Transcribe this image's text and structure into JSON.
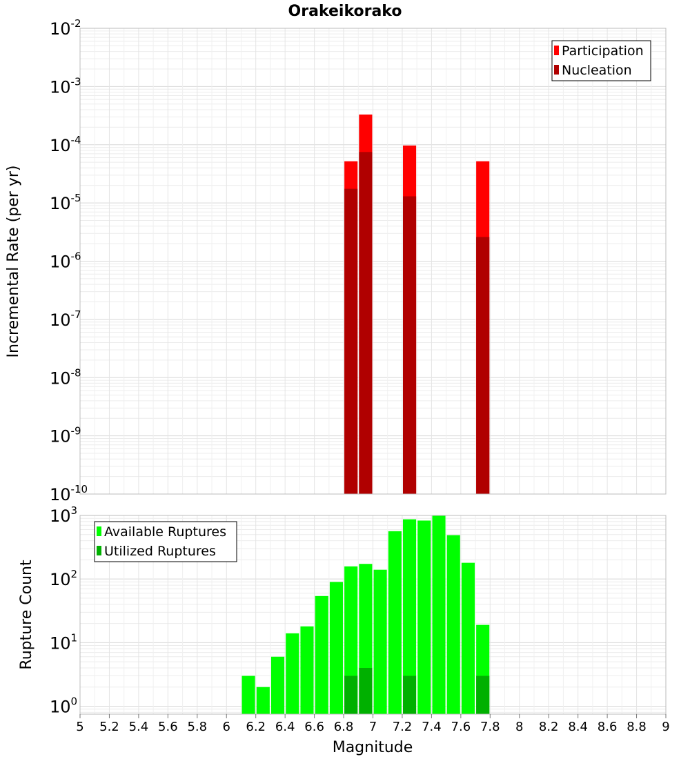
{
  "title": "Orakeikorako",
  "xlabel": "Magnitude",
  "x_ticks": [
    "5",
    "5.2",
    "5.4",
    "5.6",
    "5.8",
    "6",
    "6.2",
    "6.4",
    "6.6",
    "6.8",
    "7",
    "7.2",
    "7.4",
    "7.6",
    "7.8",
    "8",
    "8.2",
    "8.4",
    "8.6",
    "8.8",
    "9"
  ],
  "chart_data": [
    {
      "type": "bar",
      "ylabel": "Incremental Rate (per yr)",
      "yscale": "log",
      "xlim": [
        5,
        9
      ],
      "ylim": [
        1e-10,
        0.01
      ],
      "y_tick_exponents": [
        "-10",
        "-9",
        "-8",
        "-7",
        "-6",
        "-5",
        "-4",
        "-3",
        "-2"
      ],
      "grid": true,
      "legend_position": "top-right",
      "bar_width": 0.09,
      "series": [
        {
          "name": "Participation",
          "color": "#ff0000",
          "points": [
            {
              "x": 6.85,
              "y": 5.2e-05
            },
            {
              "x": 6.95,
              "y": 0.00033
            },
            {
              "x": 7.25,
              "y": 9.7e-05
            },
            {
              "x": 7.75,
              "y": 5.2e-05
            }
          ]
        },
        {
          "name": "Nucleation",
          "color": "#b00000",
          "points": [
            {
              "x": 6.85,
              "y": 1.75e-05
            },
            {
              "x": 6.95,
              "y": 7.5e-05
            },
            {
              "x": 7.25,
              "y": 1.3e-05
            },
            {
              "x": 7.75,
              "y": 2.6e-06
            }
          ]
        }
      ]
    },
    {
      "type": "bar",
      "ylabel": "Rupture Count",
      "yscale": "log",
      "xlim": [
        5,
        9
      ],
      "ylim": [
        0.75,
        1000
      ],
      "y_tick_exponents": [
        "0",
        "1",
        "2",
        "3"
      ],
      "grid": true,
      "legend_position": "top-left",
      "bar_width": 0.09,
      "series": [
        {
          "name": "Available Ruptures",
          "color": "#00ff00",
          "points": [
            {
              "x": 6.15,
              "y": 3
            },
            {
              "x": 6.25,
              "y": 2
            },
            {
              "x": 6.35,
              "y": 6
            },
            {
              "x": 6.45,
              "y": 14
            },
            {
              "x": 6.55,
              "y": 18
            },
            {
              "x": 6.65,
              "y": 54
            },
            {
              "x": 6.75,
              "y": 90
            },
            {
              "x": 6.85,
              "y": 158
            },
            {
              "x": 6.95,
              "y": 173
            },
            {
              "x": 7.05,
              "y": 140
            },
            {
              "x": 7.15,
              "y": 565
            },
            {
              "x": 7.25,
              "y": 870
            },
            {
              "x": 7.35,
              "y": 830
            },
            {
              "x": 7.45,
              "y": 990
            },
            {
              "x": 7.55,
              "y": 490
            },
            {
              "x": 7.65,
              "y": 180
            },
            {
              "x": 7.75,
              "y": 19
            }
          ]
        },
        {
          "name": "Utilized Ruptures",
          "color": "#00b000",
          "points": [
            {
              "x": 6.85,
              "y": 3
            },
            {
              "x": 6.95,
              "y": 4
            },
            {
              "x": 7.25,
              "y": 3
            },
            {
              "x": 7.75,
              "y": 3
            }
          ]
        }
      ]
    }
  ]
}
